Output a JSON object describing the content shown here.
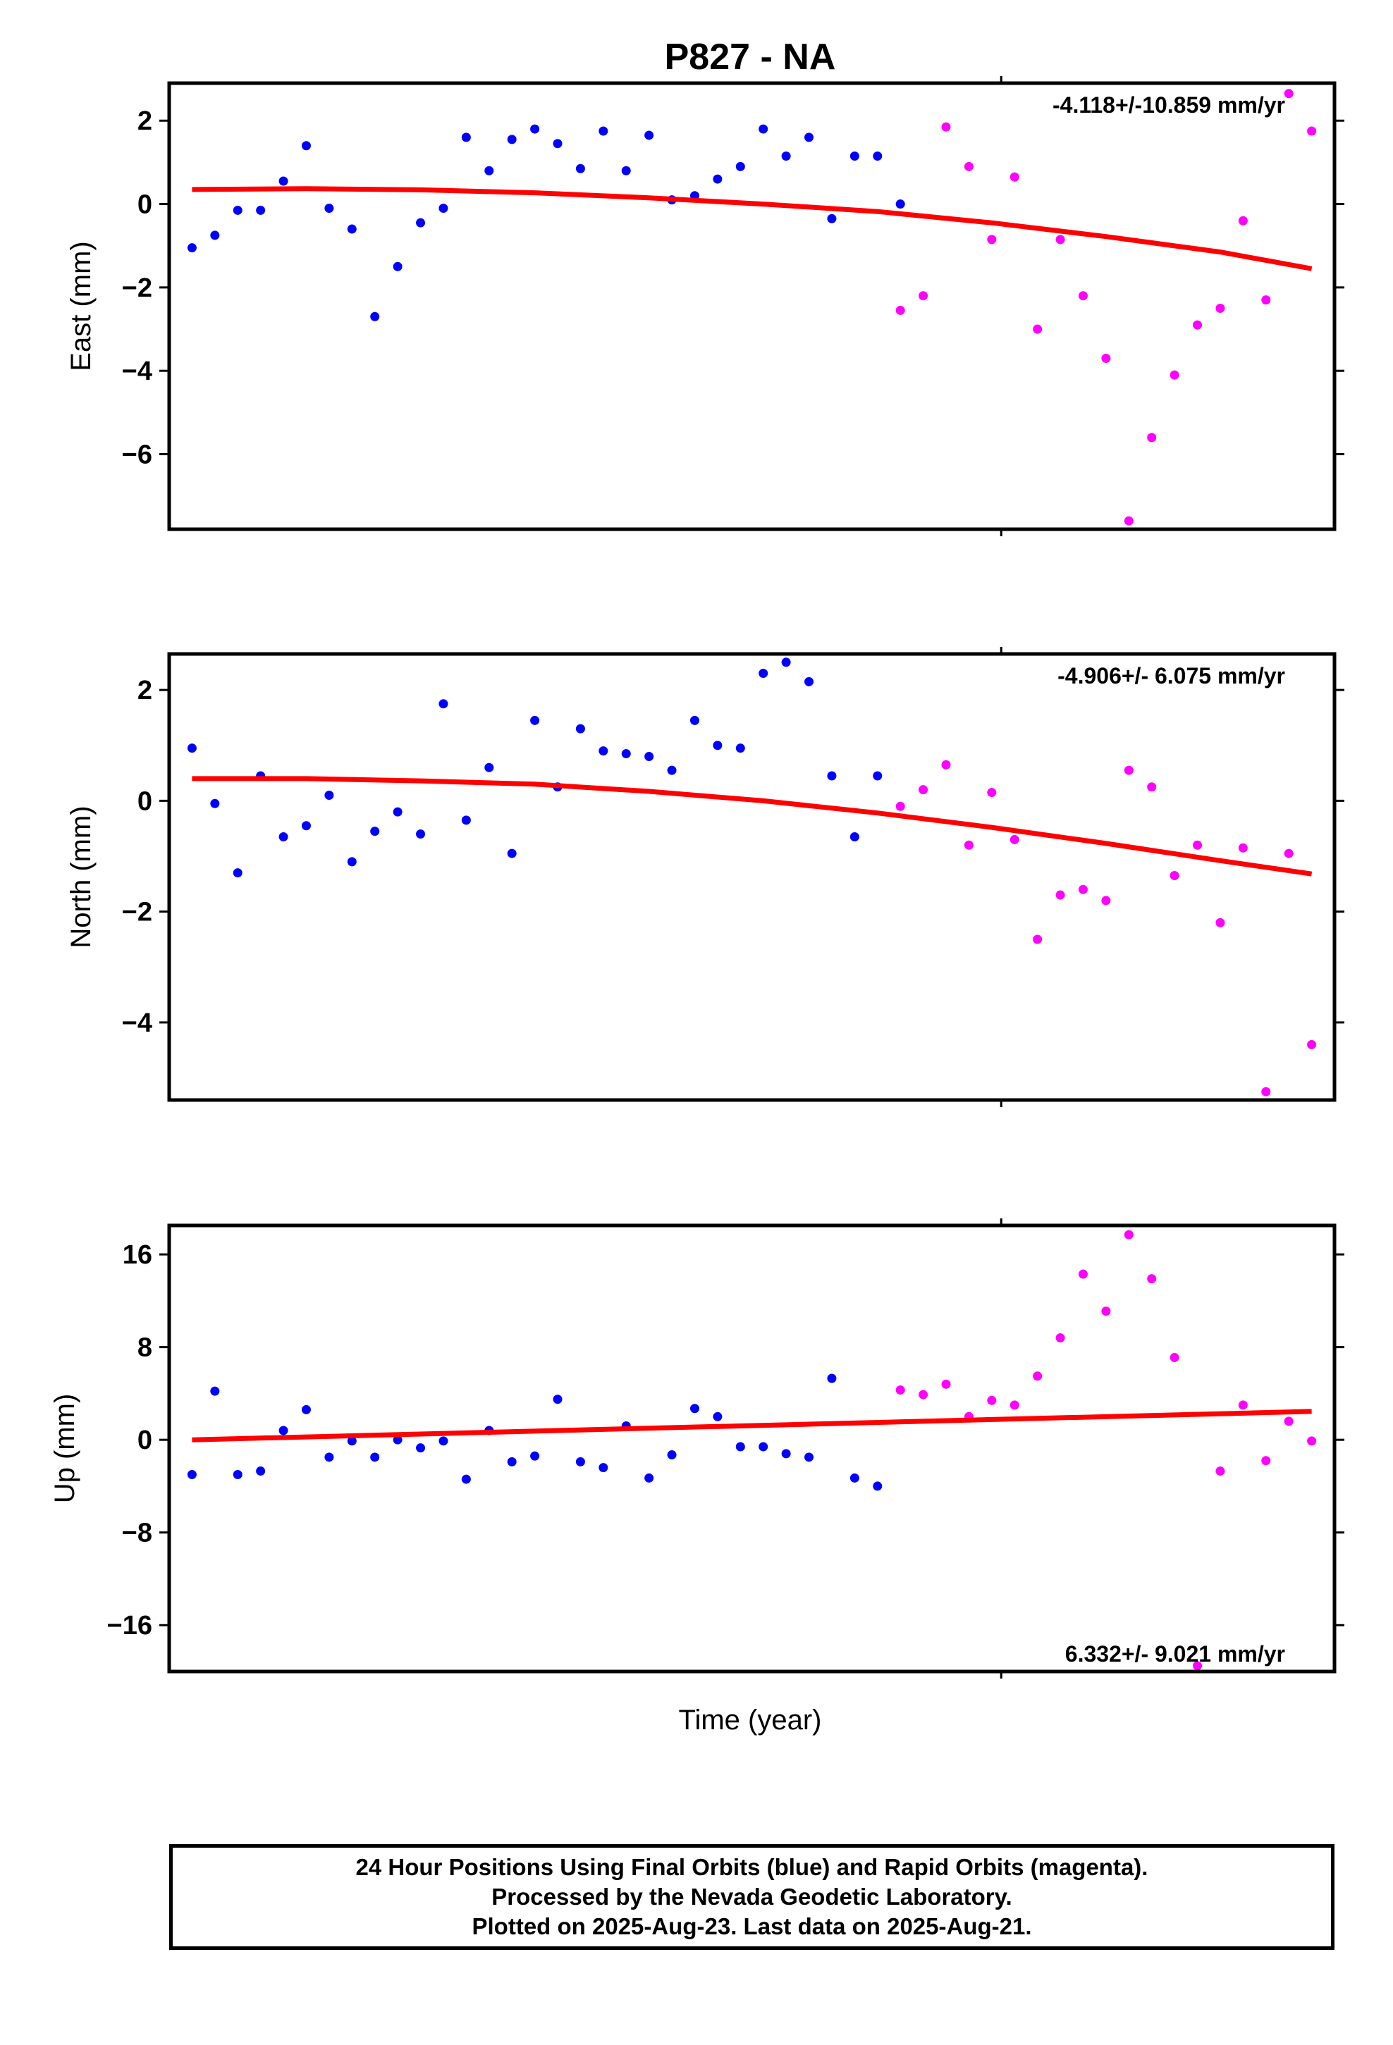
{
  "title": "P827 - NA",
  "xlabel": "Time (year)",
  "colors": {
    "final": "#0000ff",
    "rapid": "#ff00ff",
    "fit": "#ff0000",
    "frame": "#000000"
  },
  "caption": {
    "line1": "24 Hour Positions Using Final Orbits (blue) and Rapid Orbits (magenta).",
    "line2": "Processed by the Nevada Geodetic Laboratory.",
    "line3": "Plotted on 2025-Aug-23. Last data on 2025-Aug-21."
  },
  "chart_data": [
    {
      "type": "scatter",
      "ylabel": "East (mm)",
      "ylim": [
        -7.8,
        2.9
      ],
      "yticks": [
        2,
        0,
        -2,
        -4,
        -6
      ],
      "ytick_labels": [
        "2",
        "0",
        "−2",
        "−4",
        "−6"
      ],
      "rate_label": "-4.118+/-10.859 mm/yr",
      "rate_position": "top-right",
      "series": [
        {
          "name": "Final Orbits",
          "color": "#0000ff",
          "x": [
            1,
            2,
            3,
            4,
            5,
            6,
            7,
            8,
            9,
            10,
            11,
            12,
            13,
            14,
            15,
            16,
            17,
            18,
            19,
            20,
            21,
            22,
            23,
            24,
            25,
            26,
            27,
            28,
            29,
            30,
            31,
            32
          ],
          "y": [
            -1.05,
            -0.75,
            -0.15,
            -0.15,
            0.55,
            1.4,
            -0.1,
            -0.6,
            -2.7,
            -1.5,
            -0.45,
            -0.1,
            1.6,
            0.8,
            1.55,
            1.8,
            1.45,
            0.85,
            1.75,
            0.8,
            1.65,
            0.1,
            0.2,
            0.6,
            0.9,
            1.8,
            1.15,
            1.6,
            -0.35,
            1.15,
            1.15,
            0.0
          ]
        },
        {
          "name": "Rapid Orbits",
          "color": "#ff00ff",
          "x": [
            32,
            33,
            34,
            35,
            36,
            37,
            38,
            39,
            40,
            41,
            42,
            43,
            44,
            45,
            46,
            47,
            48,
            49,
            50
          ],
          "y": [
            -2.55,
            -2.2,
            1.85,
            0.9,
            -0.85,
            0.65,
            -3.0,
            -0.85,
            -2.2,
            -3.7,
            -7.6,
            -5.6,
            -4.1,
            -2.9,
            -2.5,
            -0.4,
            -2.3,
            2.65,
            1.75
          ]
        }
      ],
      "fit": {
        "x": [
          1,
          6,
          11,
          16,
          21,
          26,
          31,
          36,
          41,
          46,
          50
        ],
        "y": [
          0.35,
          0.37,
          0.34,
          0.27,
          0.15,
          0.0,
          -0.18,
          -0.45,
          -0.78,
          -1.15,
          -1.55
        ]
      }
    },
    {
      "type": "scatter",
      "ylabel": "North (mm)",
      "ylim": [
        -5.4,
        2.65
      ],
      "yticks": [
        2,
        0,
        -2,
        -4
      ],
      "ytick_labels": [
        "2",
        "0",
        "−2",
        "−4"
      ],
      "rate_label": "-4.906+/- 6.075 mm/yr",
      "rate_position": "top-right",
      "series": [
        {
          "name": "Final Orbits",
          "color": "#0000ff",
          "x": [
            1,
            2,
            3,
            4,
            5,
            6,
            7,
            8,
            9,
            10,
            11,
            12,
            13,
            14,
            15,
            16,
            17,
            18,
            19,
            20,
            21,
            22,
            23,
            24,
            25,
            26,
            27,
            28,
            29,
            30,
            31
          ],
          "y": [
            0.95,
            -0.05,
            -1.3,
            0.45,
            -0.65,
            -0.45,
            0.1,
            -1.1,
            -0.55,
            -0.2,
            -0.6,
            1.75,
            -0.35,
            0.6,
            -0.95,
            1.45,
            0.25,
            1.3,
            0.9,
            0.85,
            0.8,
            0.55,
            1.45,
            1.0,
            0.95,
            2.3,
            2.5,
            2.15,
            0.45,
            -0.65,
            0.45
          ]
        },
        {
          "name": "Rapid Orbits",
          "color": "#ff00ff",
          "x": [
            32,
            33,
            34,
            35,
            36,
            37,
            38,
            39,
            40,
            41,
            42,
            43,
            44,
            45,
            46,
            47,
            48,
            49,
            50
          ],
          "y": [
            -0.1,
            0.2,
            0.65,
            -0.8,
            0.15,
            -0.7,
            -2.5,
            -1.7,
            -1.6,
            -1.8,
            0.55,
            0.25,
            -1.35,
            -0.8,
            -2.2,
            -0.85,
            -5.25,
            -0.95,
            -4.4
          ]
        }
      ],
      "fit": {
        "x": [
          1,
          6,
          11,
          16,
          21,
          26,
          31,
          36,
          41,
          46,
          50
        ],
        "y": [
          0.4,
          0.4,
          0.36,
          0.3,
          0.17,
          0.0,
          -0.22,
          -0.48,
          -0.77,
          -1.08,
          -1.32
        ]
      }
    },
    {
      "type": "scatter",
      "ylabel": "Up (mm)",
      "ylim": [
        -20,
        18.5
      ],
      "yticks": [
        16,
        8,
        0,
        -8,
        -16
      ],
      "ytick_labels": [
        "16",
        "8",
        "0",
        "−8",
        "−16"
      ],
      "rate_label": "6.332+/- 9.021 mm/yr",
      "rate_position": "bottom-right",
      "series": [
        {
          "name": "Final Orbits",
          "color": "#0000ff",
          "x": [
            1,
            2,
            3,
            4,
            5,
            6,
            7,
            8,
            9,
            10,
            11,
            12,
            13,
            14,
            15,
            16,
            17,
            18,
            19,
            20,
            21,
            22,
            23,
            24,
            25,
            26,
            27,
            28,
            29,
            30,
            31
          ],
          "y": [
            -3.0,
            4.2,
            -3.0,
            -2.7,
            0.8,
            2.6,
            -1.5,
            -0.1,
            -1.5,
            0.0,
            -0.7,
            -0.1,
            -3.4,
            0.8,
            -1.9,
            -1.4,
            3.5,
            -1.9,
            -2.4,
            1.2,
            -3.3,
            -1.3,
            2.7,
            2.0,
            -0.6,
            -0.6,
            -1.2,
            -1.5,
            5.3,
            -3.3,
            -4.0
          ]
        },
        {
          "name": "Rapid Orbits",
          "color": "#ff00ff",
          "x": [
            32,
            33,
            34,
            35,
            36,
            37,
            38,
            39,
            40,
            41,
            42,
            43,
            44,
            45,
            46,
            47,
            48,
            49,
            50
          ],
          "y": [
            4.3,
            3.9,
            4.8,
            2.0,
            3.4,
            3.0,
            5.5,
            8.8,
            14.3,
            11.1,
            17.7,
            13.9,
            7.1,
            -19.5,
            -2.7,
            3.0,
            -1.8,
            1.6,
            -0.1
          ]
        }
      ],
      "fit": {
        "x": [
          1,
          50
        ],
        "y": [
          0.0,
          2.45
        ]
      }
    }
  ]
}
